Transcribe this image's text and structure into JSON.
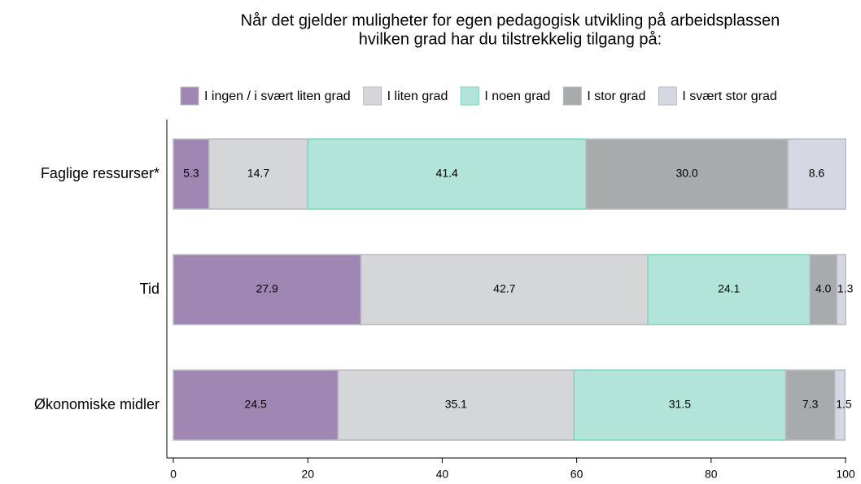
{
  "chart_data": {
    "type": "stacked-barh",
    "title": [
      "Når det gjelder muligheter for egen pedagogisk utvikling på arbeidsplassen",
      "hvilken grad har du tilstrekkelig tilgang på:"
    ],
    "categories": [
      "Faglige ressurser*",
      "Tid",
      "Økonomiske midler"
    ],
    "series": [
      {
        "name": "I ingen / i svært liten grad",
        "color": "#a087b3",
        "values": [
          5.3,
          27.9,
          24.5
        ],
        "value_labels": [
          "5.3",
          "27.9",
          "24.5"
        ]
      },
      {
        "name": "I liten grad",
        "color": "#d5d6d8",
        "values": [
          14.7,
          42.7,
          35.1
        ],
        "value_labels": [
          "14.7",
          "42.7",
          "35.1"
        ]
      },
      {
        "name": "I noen grad",
        "color": "#b2e4da",
        "values": [
          41.4,
          24.1,
          31.5
        ],
        "value_labels": [
          "41.4",
          "24.1",
          "31.5"
        ]
      },
      {
        "name": "I stor grad",
        "color": "#a8abab",
        "values": [
          30,
          4,
          7.3
        ],
        "value_labels": [
          "30.0",
          "4.0",
          "7.3"
        ]
      },
      {
        "name": "I svært stor grad",
        "color": "#d5d8e2",
        "values": [
          8.6,
          1.3,
          1.5
        ],
        "value_labels": [
          "8.6",
          "1.3",
          "1.5"
        ]
      }
    ],
    "xlim": [
      0,
      100
    ],
    "xticks": [
      0,
      20,
      40,
      60,
      80,
      100
    ]
  }
}
